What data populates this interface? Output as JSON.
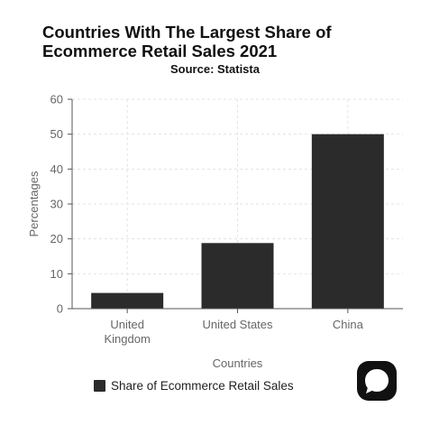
{
  "title": "Countries With The Largest Share of Ecommerce Retail Sales 2021",
  "subtitle": "Source: Statista",
  "logo_icon": "speech-bubble-logo-icon",
  "colors": {
    "bar": "#2b2b2b",
    "grid": "#e3e3e3",
    "axis": "#555555",
    "tick_text": "#666666",
    "logo_bg": "#111111",
    "logo_fg": "#ffffff"
  },
  "chart_data": {
    "type": "bar",
    "categories": [
      "United Kingdom",
      "United States",
      "China"
    ],
    "category_lines": [
      [
        "United",
        "Kingdom"
      ],
      [
        "United States"
      ],
      [
        "China"
      ]
    ],
    "series": [
      {
        "name": "Share of Ecommerce Retail Sales",
        "values": [
          4.5,
          18.8,
          50
        ]
      }
    ],
    "xlabel": "Countries",
    "ylabel": "Percentages",
    "ylim": [
      0,
      60
    ],
    "yticks": [
      0,
      10,
      20,
      30,
      40,
      50,
      60
    ],
    "grid": true,
    "legend_position": "bottom-left"
  }
}
